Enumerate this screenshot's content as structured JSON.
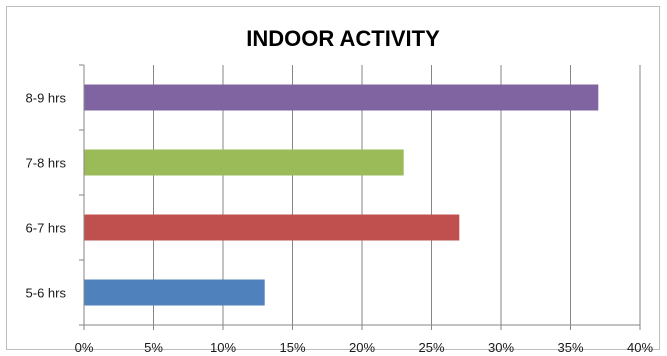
{
  "chart_data": {
    "type": "bar",
    "orientation": "horizontal",
    "title": "INDOOR ACTIVITY",
    "xlabel": "",
    "ylabel": "",
    "categories": [
      "5-6 hrs",
      "6-7 hrs",
      "7-8 hrs",
      "8-9 hrs"
    ],
    "values": [
      13,
      27,
      23,
      37
    ],
    "colors": [
      "#4f81bd",
      "#c0504d",
      "#9bbb59",
      "#8064a2"
    ],
    "xlim": [
      0,
      40
    ],
    "x_ticks": [
      "0%",
      "5%",
      "10%",
      "15%",
      "20%",
      "25%",
      "30%",
      "35%",
      "40%"
    ],
    "value_format": "percent",
    "grid": "vertical",
    "grid_color": "#868686",
    "legend": "none"
  }
}
